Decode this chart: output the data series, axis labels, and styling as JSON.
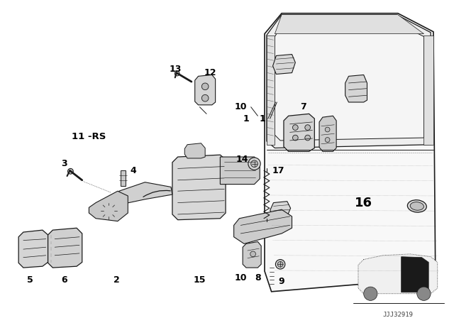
{
  "bg_color": "#ffffff",
  "line_color": "#1a1a1a",
  "label_color": "#000000",
  "watermark": "JJJ32919",
  "font_size_labels": 7.5,
  "font_size_bold": 9.0,
  "font_size_16": 13.0
}
